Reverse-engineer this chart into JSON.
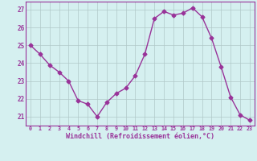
{
  "x": [
    0,
    1,
    2,
    3,
    4,
    5,
    6,
    7,
    8,
    9,
    10,
    11,
    12,
    13,
    14,
    15,
    16,
    17,
    18,
    19,
    20,
    21,
    22,
    23
  ],
  "y": [
    25.0,
    24.5,
    23.9,
    23.5,
    23.0,
    21.9,
    21.7,
    21.0,
    21.8,
    22.3,
    22.6,
    23.3,
    24.5,
    26.5,
    26.9,
    26.7,
    26.8,
    27.1,
    26.6,
    25.4,
    23.8,
    22.1,
    21.1,
    20.8
  ],
  "line_color": "#993399",
  "marker": "D",
  "markersize": 2.5,
  "linewidth": 1.0,
  "bg_color": "#d5f0f0",
  "grid_color": "#b0c8c8",
  "xlabel": "Windchill (Refroidissement éolien,°C)",
  "xlabel_color": "#993399",
  "tick_color": "#993399",
  "ylabel_ticks": [
    21,
    22,
    23,
    24,
    25,
    26,
    27
  ],
  "xlim": [
    -0.5,
    23.5
  ],
  "ylim": [
    20.5,
    27.45
  ],
  "xtick_labels": [
    "0",
    "1",
    "2",
    "3",
    "4",
    "5",
    "6",
    "7",
    "8",
    "9",
    "10",
    "11",
    "12",
    "13",
    "14",
    "15",
    "16",
    "17",
    "18",
    "19",
    "20",
    "21",
    "22",
    "23"
  ]
}
